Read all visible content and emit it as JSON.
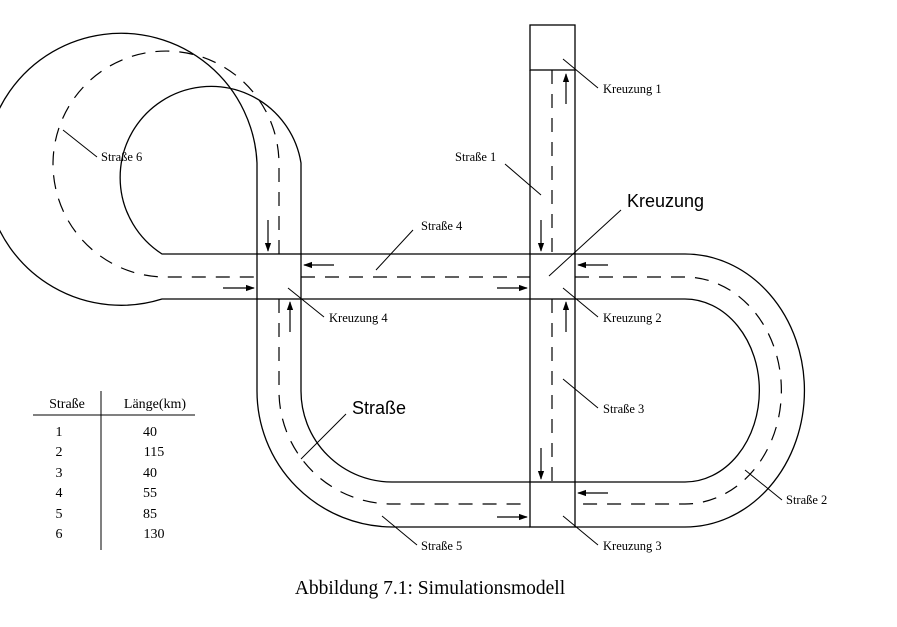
{
  "labels": {
    "kreuzung_1": "Kreuzung 1",
    "kreuzung_2": "Kreuzung 2",
    "kreuzung_3": "Kreuzung 3",
    "kreuzung_4": "Kreuzung 4",
    "kreuzung_generic": "Kreuzung",
    "strasse_1": "Straße 1",
    "strasse_2": "Straße 2",
    "strasse_3": "Straße 3",
    "strasse_4": "Straße 4",
    "strasse_5": "Straße 5",
    "strasse_6": "Straße 6",
    "strasse_generic": "Straße"
  },
  "table": {
    "headers": [
      "Straße",
      "Länge(km)"
    ],
    "rows": [
      [
        "1",
        "40"
      ],
      [
        "2",
        "115"
      ],
      [
        "3",
        "40"
      ],
      [
        "4",
        "55"
      ],
      [
        "5",
        "85"
      ],
      [
        "6",
        "130"
      ]
    ]
  },
  "caption": "Abbildung 7.1: Simulationsmodell"
}
